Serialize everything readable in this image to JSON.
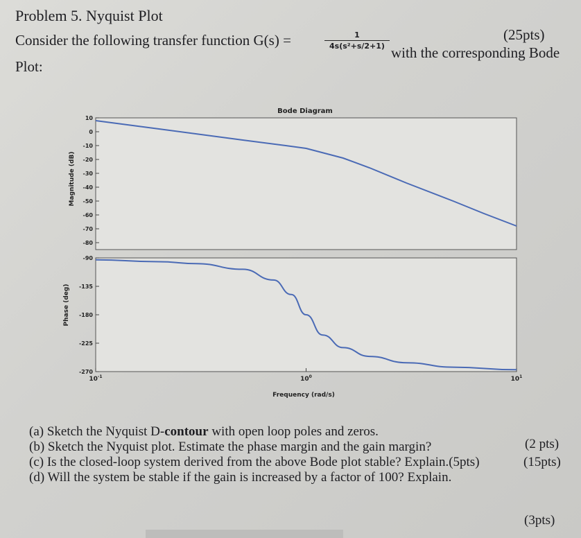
{
  "problem": {
    "title": "Problem 5. Nyquist Plot",
    "points_total": "(25pts)",
    "intro_text": "Consider the following transfer function G(s) =",
    "tf_numerator": "1",
    "tf_denominator": "4s(s²+s/2+1)",
    "intro_tail": "with the corresponding Bode",
    "plot_label": "Plot:"
  },
  "bode": {
    "title": "Bode Diagram",
    "magnitude_ylabel": "Magnitude (dB)",
    "phase_ylabel": "Phase (deg)",
    "xlabel": "Frequency (rad/s)",
    "mag_ticks": [
      "10",
      "0",
      "-10",
      "-20",
      "-30",
      "-40",
      "-50",
      "-60",
      "-70",
      "-80"
    ],
    "phase_ticks": [
      "-90",
      "-135",
      "-180",
      "-225",
      "-270"
    ],
    "x_ticks": [
      {
        "base": "10",
        "exp": "-1"
      },
      {
        "base": "10",
        "exp": "0"
      },
      {
        "base": "10",
        "exp": "1"
      }
    ]
  },
  "chart_data": {
    "type": "line",
    "title": "Bode Diagram",
    "xlabel": "Frequency (rad/s)",
    "x_scale": "log",
    "xlim": [
      0.1,
      10
    ],
    "grid": false,
    "panels": [
      {
        "name": "magnitude",
        "ylabel": "Magnitude (dB)",
        "ylim": [
          -85,
          10
        ],
        "x": [
          0.1,
          0.2,
          0.5,
          0.8,
          1.0,
          1.5,
          2,
          3,
          5,
          7,
          10
        ],
        "y": [
          8,
          2,
          -6,
          -10,
          -12,
          -19,
          -26,
          -37,
          -50,
          -59,
          -68
        ]
      },
      {
        "name": "phase",
        "ylabel": "Phase (deg)",
        "ylim": [
          -270,
          -90
        ],
        "x": [
          0.1,
          0.2,
          0.3,
          0.5,
          0.7,
          0.85,
          1.0,
          1.2,
          1.5,
          2,
          3,
          5,
          10
        ],
        "y": [
          -93,
          -96,
          -99,
          -108,
          -125,
          -148,
          -180,
          -212,
          -232,
          -246,
          -256,
          -263,
          -267
        ]
      }
    ]
  },
  "questions": [
    {
      "pre": "(a) Sketch the Nyquist D-",
      "bold": "contour",
      "post": " with open loop poles and zeros.",
      "pts": "(2 pts)"
    },
    {
      "text": "(b) Sketch the Nyquist plot. Estimate the phase margin and the gain margin?",
      "pts": "(15pts)"
    },
    {
      "text": "(c) Is the closed-loop system derived from the above Bode plot stable? Explain.(5pts)"
    },
    {
      "text": "(d) Will the system be stable if the gain is increased by a factor of 100? Explain.",
      "pts": "(3pts)"
    }
  ]
}
